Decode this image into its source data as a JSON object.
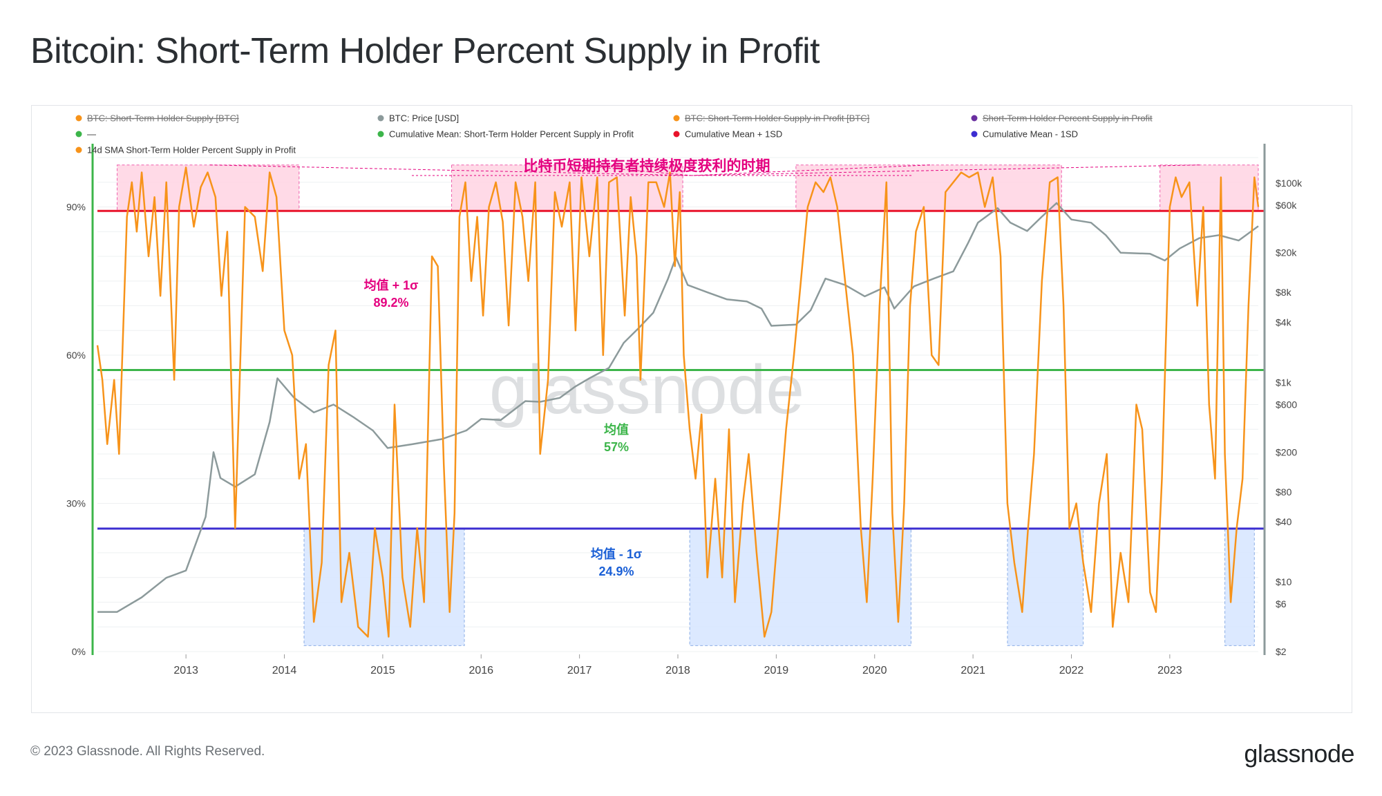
{
  "title": "Bitcoin: Short-Term Holder Percent Supply in Profit",
  "footer": {
    "copyright": "© 2023 Glassnode. All Rights Reserved.",
    "brand": "glassnode"
  },
  "watermark": "glassnode",
  "colors": {
    "orange": "#f7931a",
    "gray": "#8c9a9b",
    "red": "#e8132a",
    "green": "#3cb54a",
    "purple": "#3c2ed1",
    "pink": "#e4007f",
    "blue": "#1a5fd6"
  },
  "chart_data": {
    "type": "line",
    "title": "Bitcoin: Short-Term Holder Percent Supply in Profit",
    "legend": [
      {
        "label": "BTC: Short-Term Holder Supply [BTC]",
        "color": "#f7931a",
        "disabled": true
      },
      {
        "label": "BTC: Price [USD]",
        "color": "#8c9a9b",
        "disabled": false
      },
      {
        "label": "BTC: Short-Term Holder Supply in Profit [BTC]",
        "color": "#f7931a",
        "disabled": true
      },
      {
        "label": "Short-Term Holder Percent Supply in Profit",
        "color": "#6a2fa0",
        "disabled": true
      },
      {
        "label": "—",
        "color": "#3cb54a",
        "disabled": false
      },
      {
        "label": "Cumulative Mean: Short-Term Holder Percent Supply in Profit",
        "color": "#3cb54a",
        "disabled": false
      },
      {
        "label": "Cumulative Mean + 1SD",
        "color": "#e8132a",
        "disabled": false
      },
      {
        "label": "Cumulative Mean - 1SD",
        "color": "#3c2ed1",
        "disabled": false
      },
      {
        "label": "14d SMA Short-Term Holder Percent Supply in Profit",
        "color": "#f7931a",
        "disabled": false
      }
    ],
    "x_ticks": [
      "2013",
      "2014",
      "2015",
      "2016",
      "2017",
      "2018",
      "2019",
      "2020",
      "2021",
      "2022",
      "2023"
    ],
    "x_range": [
      2012.1,
      2023.9
    ],
    "y_left": {
      "ticks": [
        "0%",
        "30%",
        "60%",
        "90%"
      ],
      "range": [
        0,
        100
      ]
    },
    "y_right": {
      "ticks": [
        "$2",
        "$6",
        "$10",
        "$40",
        "$80",
        "$200",
        "$600",
        "$1k",
        "$4k",
        "$8k",
        "$20k",
        "$60k",
        "$100k"
      ],
      "range_log": [
        2,
        180000
      ]
    },
    "reference_lines": [
      {
        "name": "mean_plus_1sd",
        "value": 89.2,
        "label_1": "均值 + 1σ",
        "label_2": "89.2%"
      },
      {
        "name": "mean",
        "value": 57,
        "label_1": "均值",
        "label_2": "57%"
      },
      {
        "name": "mean_minus_1sd",
        "value": 24.9,
        "label_1": "均值 - 1σ",
        "label_2": "24.9%"
      }
    ],
    "annotation": "比特币短期持有者持续极度获利的时期",
    "high_regions": [
      [
        2012.3,
        2014.15
      ],
      [
        2015.7,
        2018.05
      ],
      [
        2019.2,
        2021.9
      ],
      [
        2022.9,
        2023.9
      ]
    ],
    "low_regions": [
      [
        2014.2,
        2015.83
      ],
      [
        2018.12,
        2020.37
      ],
      [
        2021.35,
        2022.12
      ],
      [
        2023.56,
        2023.86
      ]
    ],
    "price_series": [
      [
        2012.1,
        5
      ],
      [
        2012.3,
        5
      ],
      [
        2012.55,
        7
      ],
      [
        2012.8,
        11
      ],
      [
        2013.0,
        13
      ],
      [
        2013.2,
        45
      ],
      [
        2013.28,
        200
      ],
      [
        2013.35,
        110
      ],
      [
        2013.5,
        90
      ],
      [
        2013.7,
        120
      ],
      [
        2013.85,
        400
      ],
      [
        2013.93,
        1100
      ],
      [
        2014.1,
        700
      ],
      [
        2014.3,
        500
      ],
      [
        2014.5,
        600
      ],
      [
        2014.7,
        450
      ],
      [
        2014.9,
        330
      ],
      [
        2015.05,
        220
      ],
      [
        2015.3,
        240
      ],
      [
        2015.6,
        270
      ],
      [
        2015.85,
        330
      ],
      [
        2016.0,
        430
      ],
      [
        2016.2,
        420
      ],
      [
        2016.45,
        650
      ],
      [
        2016.6,
        640
      ],
      [
        2016.8,
        700
      ],
      [
        2016.95,
        900
      ],
      [
        2017.1,
        1100
      ],
      [
        2017.3,
        1400
      ],
      [
        2017.45,
        2500
      ],
      [
        2017.6,
        3500
      ],
      [
        2017.75,
        5000
      ],
      [
        2017.9,
        11000
      ],
      [
        2017.98,
        18000
      ],
      [
        2018.1,
        9500
      ],
      [
        2018.3,
        8000
      ],
      [
        2018.5,
        6800
      ],
      [
        2018.7,
        6500
      ],
      [
        2018.85,
        5500
      ],
      [
        2018.95,
        3700
      ],
      [
        2019.2,
        3800
      ],
      [
        2019.35,
        5300
      ],
      [
        2019.5,
        11000
      ],
      [
        2019.7,
        9500
      ],
      [
        2019.9,
        7300
      ],
      [
        2020.1,
        9000
      ],
      [
        2020.2,
        5500
      ],
      [
        2020.4,
        9200
      ],
      [
        2020.6,
        11000
      ],
      [
        2020.8,
        13000
      ],
      [
        2020.95,
        25000
      ],
      [
        2021.05,
        40000
      ],
      [
        2021.25,
        56000
      ],
      [
        2021.38,
        40000
      ],
      [
        2021.55,
        33000
      ],
      [
        2021.7,
        46000
      ],
      [
        2021.85,
        63000
      ],
      [
        2022.0,
        43000
      ],
      [
        2022.2,
        40000
      ],
      [
        2022.35,
        30000
      ],
      [
        2022.5,
        20000
      ],
      [
        2022.8,
        19500
      ],
      [
        2022.95,
        16700
      ],
      [
        2023.1,
        22000
      ],
      [
        2023.3,
        28000
      ],
      [
        2023.5,
        30000
      ],
      [
        2023.7,
        26500
      ],
      [
        2023.85,
        34000
      ],
      [
        2023.9,
        37000
      ]
    ],
    "sth_percent_series": [
      [
        2012.1,
        62
      ],
      [
        2012.15,
        55
      ],
      [
        2012.2,
        42
      ],
      [
        2012.27,
        55
      ],
      [
        2012.32,
        40
      ],
      [
        2012.4,
        88
      ],
      [
        2012.45,
        95
      ],
      [
        2012.5,
        85
      ],
      [
        2012.55,
        97
      ],
      [
        2012.62,
        80
      ],
      [
        2012.68,
        92
      ],
      [
        2012.74,
        72
      ],
      [
        2012.8,
        95
      ],
      [
        2012.88,
        55
      ],
      [
        2012.93,
        90
      ],
      [
        2013.0,
        98
      ],
      [
        2013.08,
        86
      ],
      [
        2013.15,
        94
      ],
      [
        2013.22,
        97
      ],
      [
        2013.3,
        92
      ],
      [
        2013.36,
        72
      ],
      [
        2013.42,
        85
      ],
      [
        2013.5,
        25
      ],
      [
        2013.6,
        90
      ],
      [
        2013.7,
        88
      ],
      [
        2013.78,
        77
      ],
      [
        2013.85,
        97
      ],
      [
        2013.92,
        92
      ],
      [
        2014.0,
        65
      ],
      [
        2014.08,
        60
      ],
      [
        2014.15,
        35
      ],
      [
        2014.22,
        42
      ],
      [
        2014.3,
        6
      ],
      [
        2014.38,
        18
      ],
      [
        2014.45,
        58
      ],
      [
        2014.52,
        65
      ],
      [
        2014.58,
        10
      ],
      [
        2014.66,
        20
      ],
      [
        2014.75,
        5
      ],
      [
        2014.85,
        3
      ],
      [
        2014.92,
        25
      ],
      [
        2015.0,
        15
      ],
      [
        2015.06,
        3
      ],
      [
        2015.12,
        50
      ],
      [
        2015.2,
        15
      ],
      [
        2015.28,
        5
      ],
      [
        2015.35,
        25
      ],
      [
        2015.42,
        10
      ],
      [
        2015.5,
        80
      ],
      [
        2015.56,
        78
      ],
      [
        2015.62,
        38
      ],
      [
        2015.68,
        8
      ],
      [
        2015.73,
        28
      ],
      [
        2015.78,
        88
      ],
      [
        2015.84,
        95
      ],
      [
        2015.9,
        75
      ],
      [
        2015.96,
        88
      ],
      [
        2016.02,
        68
      ],
      [
        2016.08,
        90
      ],
      [
        2016.15,
        95
      ],
      [
        2016.22,
        87
      ],
      [
        2016.28,
        66
      ],
      [
        2016.35,
        95
      ],
      [
        2016.42,
        88
      ],
      [
        2016.48,
        75
      ],
      [
        2016.55,
        95
      ],
      [
        2016.6,
        40
      ],
      [
        2016.68,
        55
      ],
      [
        2016.75,
        93
      ],
      [
        2016.82,
        86
      ],
      [
        2016.9,
        95
      ],
      [
        2016.96,
        65
      ],
      [
        2017.02,
        96
      ],
      [
        2017.1,
        80
      ],
      [
        2017.18,
        96
      ],
      [
        2017.24,
        60
      ],
      [
        2017.3,
        95
      ],
      [
        2017.38,
        96
      ],
      [
        2017.46,
        68
      ],
      [
        2017.52,
        92
      ],
      [
        2017.58,
        80
      ],
      [
        2017.62,
        55
      ],
      [
        2017.7,
        95
      ],
      [
        2017.78,
        95
      ],
      [
        2017.86,
        90
      ],
      [
        2017.92,
        97
      ],
      [
        2017.97,
        78
      ],
      [
        2018.02,
        93
      ],
      [
        2018.06,
        60
      ],
      [
        2018.12,
        45
      ],
      [
        2018.18,
        35
      ],
      [
        2018.24,
        48
      ],
      [
        2018.3,
        15
      ],
      [
        2018.38,
        35
      ],
      [
        2018.45,
        15
      ],
      [
        2018.52,
        45
      ],
      [
        2018.58,
        10
      ],
      [
        2018.66,
        30
      ],
      [
        2018.72,
        40
      ],
      [
        2018.8,
        20
      ],
      [
        2018.88,
        3
      ],
      [
        2018.95,
        8
      ],
      [
        2019.02,
        25
      ],
      [
        2019.1,
        45
      ],
      [
        2019.18,
        60
      ],
      [
        2019.25,
        75
      ],
      [
        2019.32,
        90
      ],
      [
        2019.4,
        95
      ],
      [
        2019.48,
        93
      ],
      [
        2019.55,
        96
      ],
      [
        2019.62,
        90
      ],
      [
        2019.7,
        75
      ],
      [
        2019.78,
        60
      ],
      [
        2019.86,
        25
      ],
      [
        2019.92,
        10
      ],
      [
        2019.98,
        35
      ],
      [
        2020.05,
        70
      ],
      [
        2020.12,
        95
      ],
      [
        2020.18,
        28
      ],
      [
        2020.24,
        6
      ],
      [
        2020.3,
        30
      ],
      [
        2020.36,
        70
      ],
      [
        2020.42,
        85
      ],
      [
        2020.5,
        90
      ],
      [
        2020.58,
        60
      ],
      [
        2020.65,
        58
      ],
      [
        2020.72,
        93
      ],
      [
        2020.8,
        95
      ],
      [
        2020.88,
        97
      ],
      [
        2020.96,
        96
      ],
      [
        2021.05,
        97
      ],
      [
        2021.12,
        90
      ],
      [
        2021.2,
        96
      ],
      [
        2021.28,
        80
      ],
      [
        2021.35,
        30
      ],
      [
        2021.42,
        18
      ],
      [
        2021.5,
        8
      ],
      [
        2021.56,
        25
      ],
      [
        2021.62,
        40
      ],
      [
        2021.7,
        75
      ],
      [
        2021.78,
        95
      ],
      [
        2021.86,
        96
      ],
      [
        2021.92,
        70
      ],
      [
        2021.98,
        25
      ],
      [
        2022.05,
        30
      ],
      [
        2022.12,
        18
      ],
      [
        2022.2,
        8
      ],
      [
        2022.28,
        30
      ],
      [
        2022.36,
        40
      ],
      [
        2022.42,
        5
      ],
      [
        2022.5,
        20
      ],
      [
        2022.58,
        10
      ],
      [
        2022.66,
        50
      ],
      [
        2022.72,
        45
      ],
      [
        2022.8,
        12
      ],
      [
        2022.86,
        8
      ],
      [
        2022.92,
        35
      ],
      [
        2023.0,
        90
      ],
      [
        2023.06,
        96
      ],
      [
        2023.12,
        92
      ],
      [
        2023.2,
        95
      ],
      [
        2023.28,
        70
      ],
      [
        2023.34,
        90
      ],
      [
        2023.4,
        50
      ],
      [
        2023.46,
        35
      ],
      [
        2023.52,
        96
      ],
      [
        2023.56,
        40
      ],
      [
        2023.62,
        10
      ],
      [
        2023.68,
        25
      ],
      [
        2023.74,
        35
      ],
      [
        2023.8,
        70
      ],
      [
        2023.86,
        96
      ],
      [
        2023.9,
        90
      ]
    ]
  }
}
